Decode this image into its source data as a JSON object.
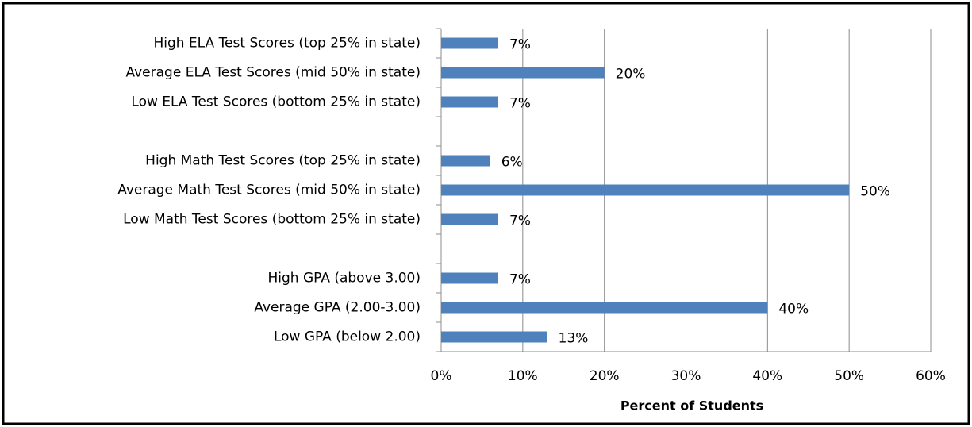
{
  "chart_data": {
    "type": "bar",
    "orientation": "horizontal",
    "x_label": "Percent of Students",
    "categories": [
      "High ELA Test Scores (top 25% in state)",
      "Average ELA Test Scores (mid 50% in state)",
      "Low ELA Test Scores (bottom 25% in state)",
      null,
      "High Math Test Scores (top 25% in state)",
      "Average Math Test Scores (mid 50% in state)",
      "Low Math Test Scores (bottom 25% in state)",
      null,
      "High GPA (above 3.00)",
      "Average GPA (2.00-3.00)",
      "Low GPA (below 2.00)"
    ],
    "values": [
      7,
      20,
      7,
      null,
      6,
      50,
      7,
      null,
      7,
      40,
      13
    ],
    "value_labels": [
      "7%",
      "20%",
      "7%",
      null,
      "6%",
      "50%",
      "7%",
      null,
      "7%",
      "40%",
      "13%"
    ],
    "color": "#4f81bd",
    "xlim": [
      0,
      60
    ],
    "xticks": [
      {
        "value": 0,
        "label": "0%"
      },
      {
        "value": 10,
        "label": "10%"
      },
      {
        "value": 20,
        "label": "20%"
      },
      {
        "value": 30,
        "label": "30%"
      },
      {
        "value": 40,
        "label": "40%"
      },
      {
        "value": 50,
        "label": "50%"
      },
      {
        "value": 60,
        "label": "60%"
      }
    ],
    "grid": true
  }
}
